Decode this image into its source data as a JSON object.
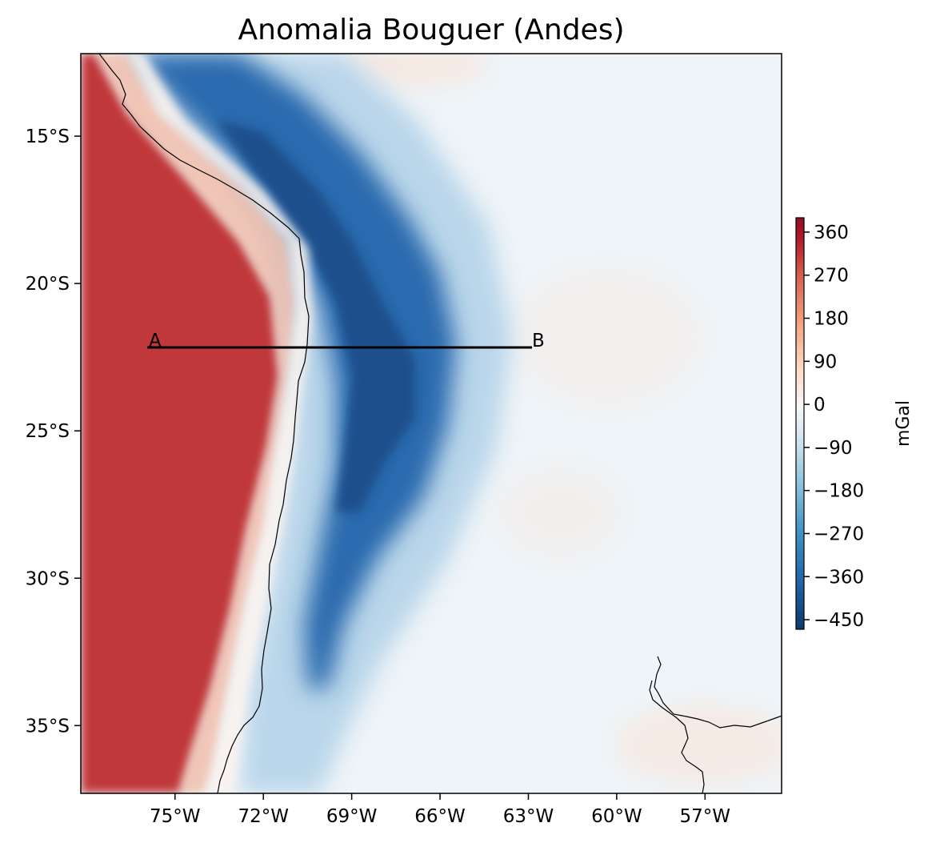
{
  "map": {
    "title": "Anomalia Bouguer (Andes)",
    "x_ticks": [
      "75°W",
      "72°W",
      "69°W",
      "66°W",
      "63°W",
      "60°W",
      "57°W"
    ],
    "x_tick_values": [
      -75,
      -72,
      -69,
      -66,
      -63,
      -60,
      -57
    ],
    "y_ticks": [
      "15°S",
      "20°S",
      "25°S",
      "30°S",
      "35°S"
    ],
    "y_tick_values": [
      -15,
      -20,
      -25,
      -30,
      -35
    ],
    "lon_range": [
      -78.2,
      -54.4
    ],
    "lat_range": [
      -37.3,
      -12.2
    ],
    "profile": {
      "start_label": "A",
      "end_label": "B",
      "start": {
        "lon": -75.9,
        "lat": -22.0
      },
      "end": {
        "lon": -62.8,
        "lat": -22.0
      }
    }
  },
  "colorbar": {
    "label": "mGal",
    "ticks": [
      "360",
      "270",
      "180",
      "90",
      "0",
      "−90",
      "−180",
      "−270",
      "−360",
      "−450"
    ],
    "tick_values": [
      360,
      270,
      180,
      90,
      0,
      -90,
      -180,
      -270,
      -360,
      -450
    ],
    "vmin": -470,
    "vmax": 390,
    "colormap": "RdBu_r",
    "stops": [
      "#0b3b6c",
      "#2166ac",
      "#4393c3",
      "#92c5de",
      "#d1e5f0",
      "#f7f7f7",
      "#fddbc7",
      "#f4a582",
      "#d6604d",
      "#b2182b",
      "#67001f"
    ]
  },
  "colors": {
    "high_anomaly": "#c0393a",
    "low_anomaly": "#1f5fa3",
    "background_field": "#eef4f8",
    "profile_line": "#000000",
    "coastline": "#000000"
  }
}
